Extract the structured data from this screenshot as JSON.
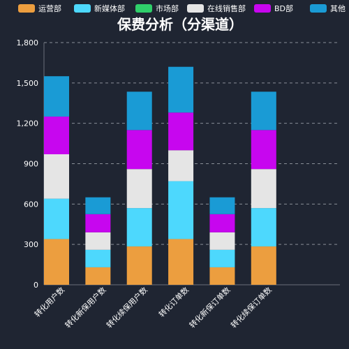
{
  "chart_data": {
    "type": "bar",
    "stacked": true,
    "title": "保费分析（分渠道）",
    "xlabel": "",
    "ylabel": "",
    "ylim": [
      0,
      1800
    ],
    "yticks": [
      "0",
      "300",
      "600",
      "900",
      "1,200",
      "1,500",
      "1,800"
    ],
    "grid": true,
    "legend_position": "top",
    "categories": [
      "转化用户数",
      "转化新保用户数",
      "转化续保用户数",
      "转化订单数",
      "转化新保订单数",
      "转化续保订单数"
    ],
    "series": [
      {
        "name": "运营部",
        "color": "#ec9e3f",
        "values": [
          340,
          130,
          285,
          340,
          130,
          285
        ]
      },
      {
        "name": "新媒体部",
        "color": "#4dd8fd",
        "values": [
          300,
          130,
          285,
          430,
          130,
          285
        ]
      },
      {
        "name": "市场部",
        "color": "#2fcf6a",
        "values": [
          0,
          0,
          0,
          0,
          0,
          0
        ]
      },
      {
        "name": "在线销售部",
        "color": "#e5e5e5",
        "values": [
          330,
          130,
          290,
          230,
          130,
          290
        ]
      },
      {
        "name": "BD部",
        "color": "#c706ef",
        "values": [
          280,
          135,
          290,
          280,
          135,
          290
        ]
      },
      {
        "name": "其他",
        "color": "#1a9bd5",
        "values": [
          300,
          125,
          285,
          340,
          125,
          285
        ]
      }
    ]
  }
}
